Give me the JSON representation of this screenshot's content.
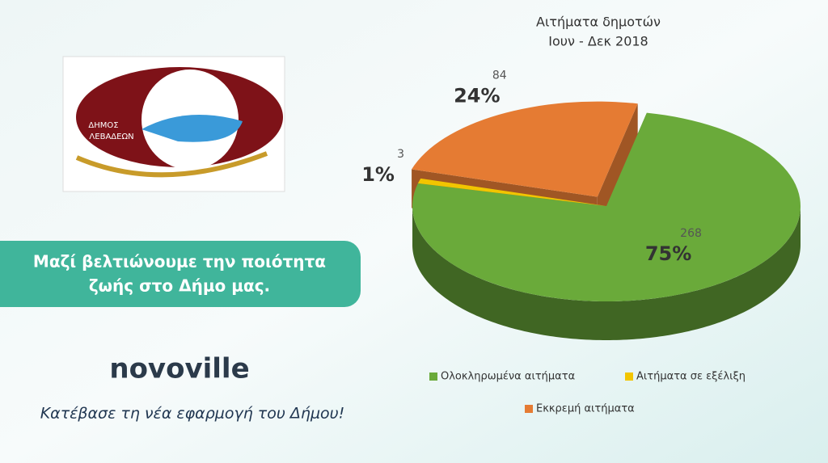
{
  "page": {
    "logo_text": [
      "ΔΗΜΟΣ",
      "ΛΕΒΑΔΕΩΝ"
    ],
    "banner": [
      "Μαζί βελτιώνουμε την ποιότητα",
      "ζωής στο  Δήμο μας."
    ],
    "brand": "novoville",
    "tagline": "Κατέβασε τη νέα εφαρμογή του Δήμου!"
  },
  "chart_data": {
    "type": "pie3d",
    "title": "Αιτήματα δημοτών",
    "subtitle": "Ιουν - Δεκ 2018",
    "categories": [
      "Ολοκληρωμένα αιτήματα",
      "Αιτήματα σε εξέλιξη",
      "Εκκρεμή αιτήματα"
    ],
    "values": [
      268,
      3,
      84
    ],
    "percent_labels": [
      "75%",
      "1%",
      "24%"
    ],
    "colors": [
      "#6aaa3a",
      "#f2c500",
      "#e57b33"
    ],
    "exploded": [
      false,
      false,
      true
    ]
  }
}
